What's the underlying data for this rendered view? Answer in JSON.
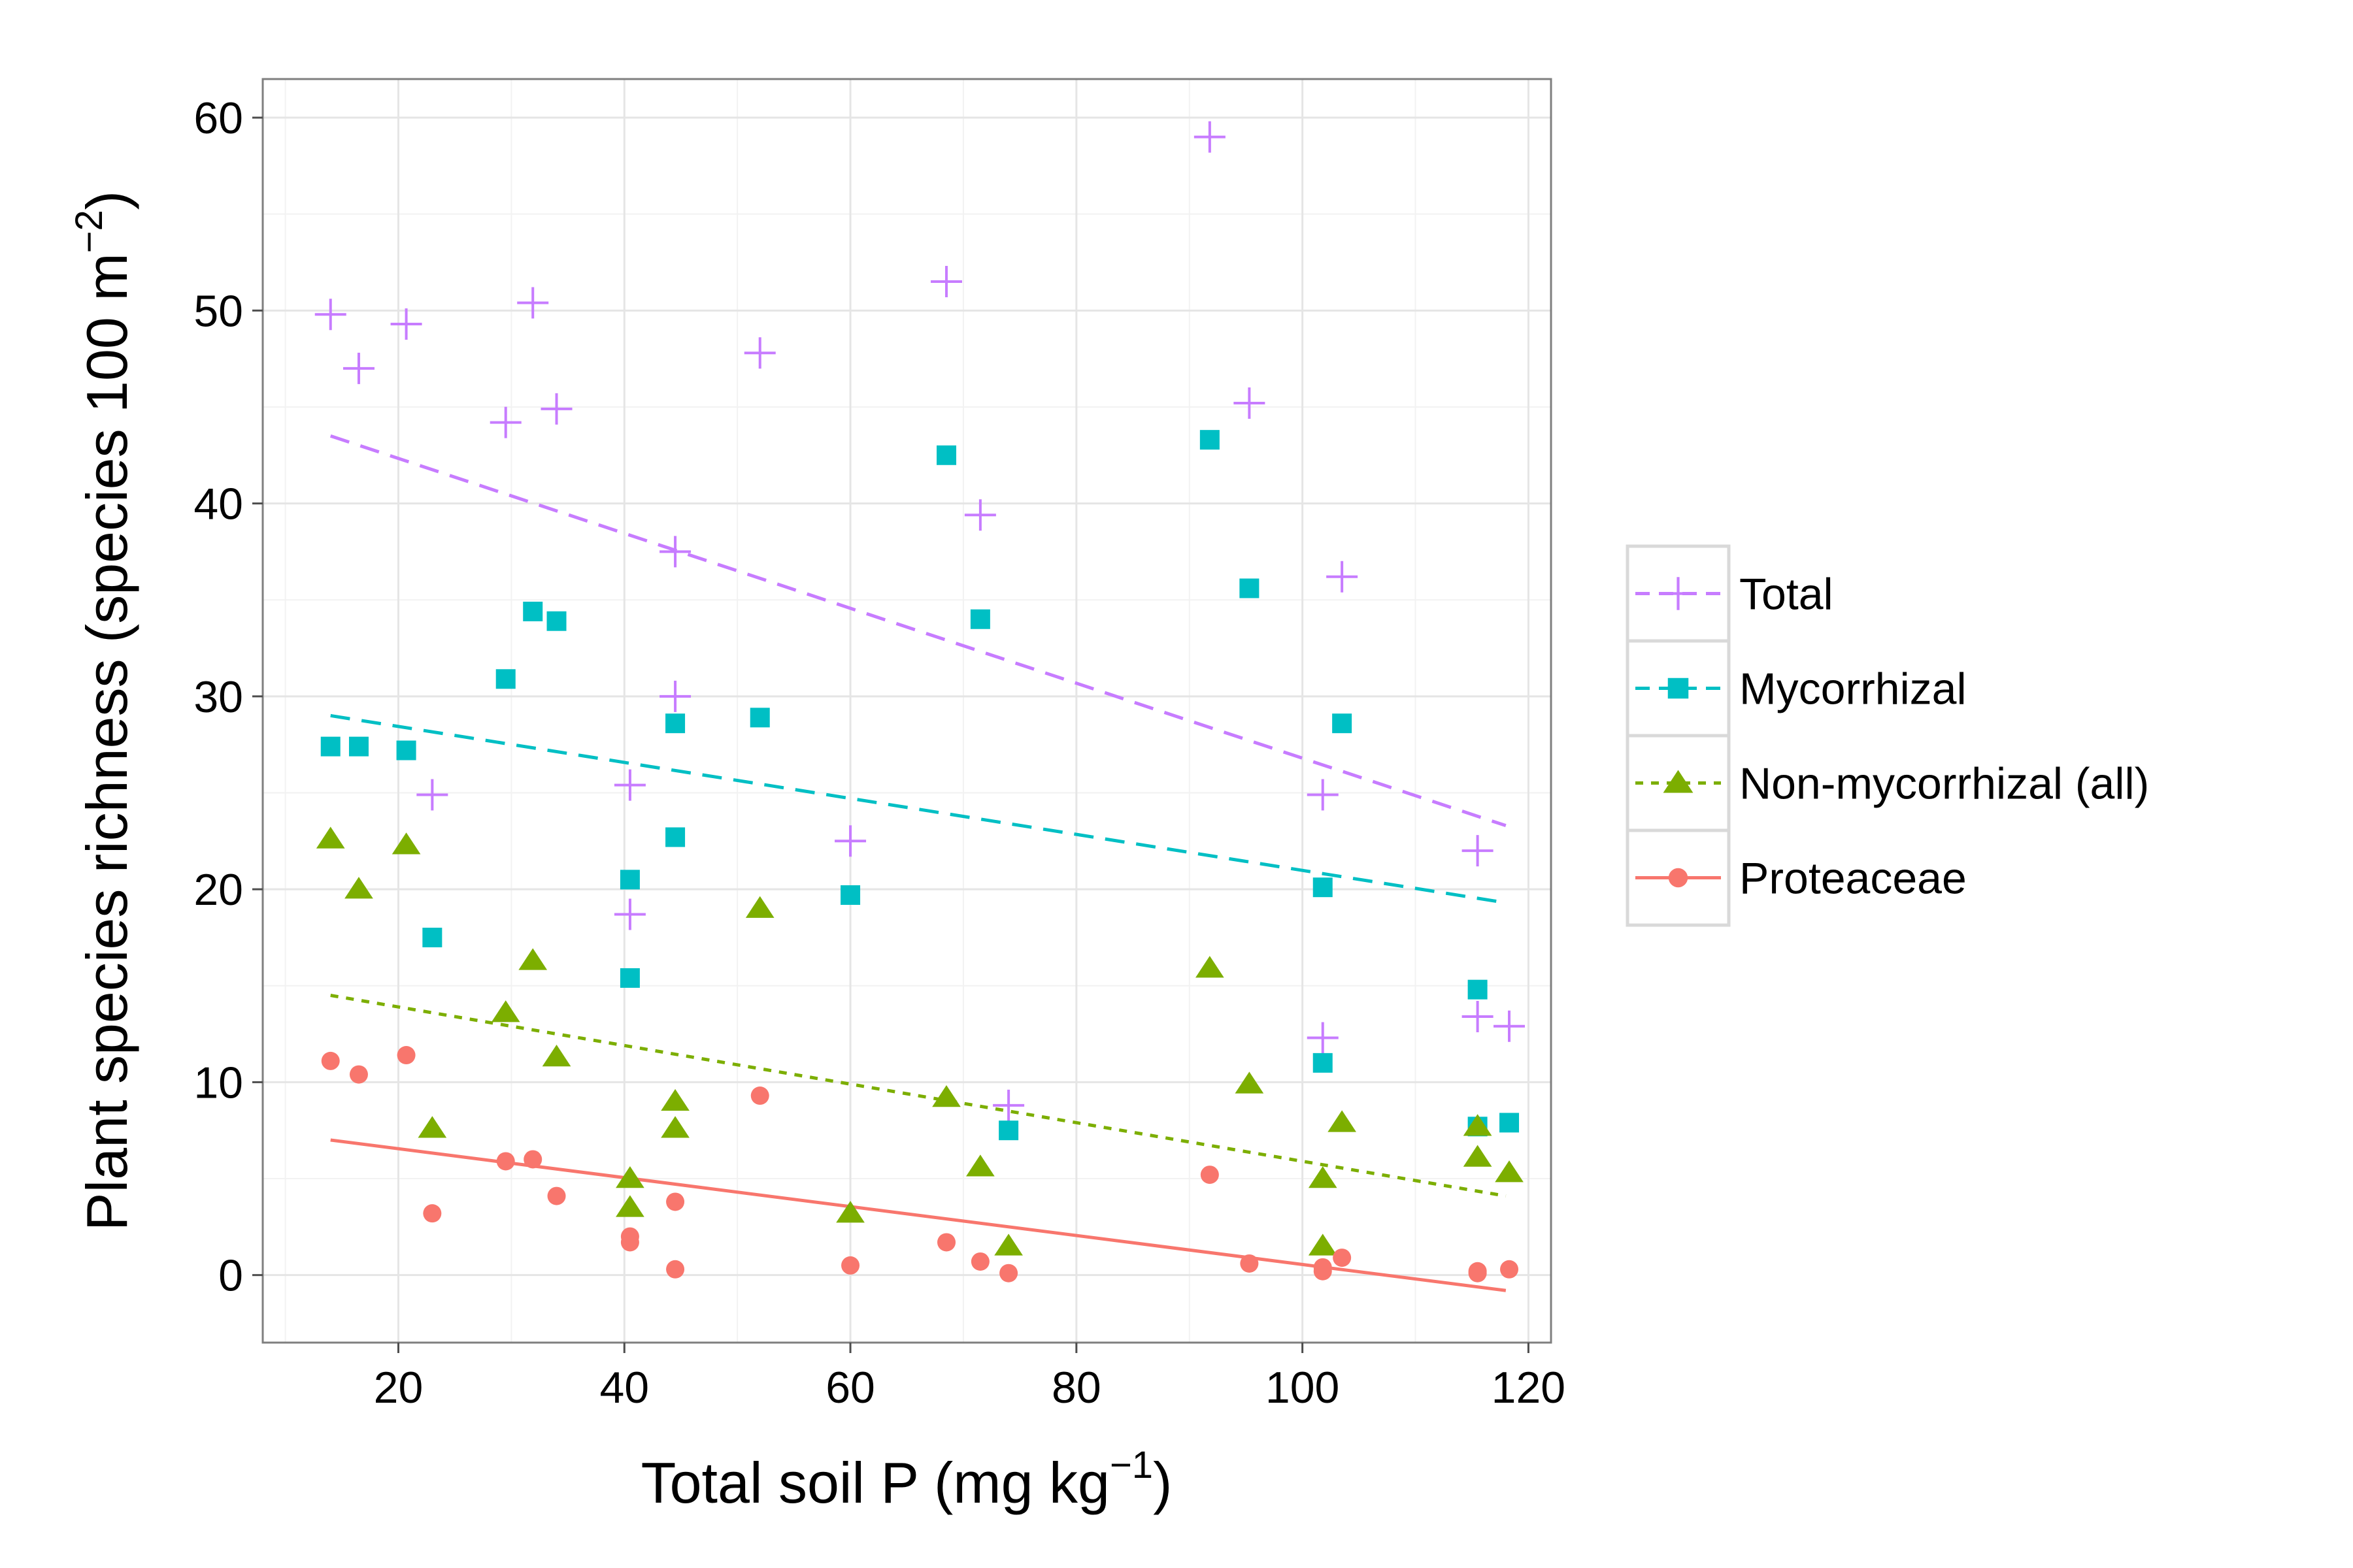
{
  "chart_data": {
    "type": "scatter",
    "title": "",
    "xlabel": "Total soil P (mg kg",
    "xlabel_sup": "−1",
    "xlabel_close": ")",
    "ylabel": "Plant species richness (species 100 m",
    "ylabel_sup": "−2",
    "ylabel_close": ")",
    "xlim": [
      8,
      122
    ],
    "ylim": [
      -3.5,
      62
    ],
    "xticks": [
      20,
      40,
      60,
      80,
      100,
      120
    ],
    "yticks": [
      0,
      10,
      20,
      30,
      40,
      50,
      60
    ],
    "grid": true,
    "legend_position": "right",
    "series": [
      {
        "name": "Total",
        "color": "#C77CFF",
        "marker": "plus",
        "line_style": "dashed",
        "trend": [
          [
            14,
            43.5
          ],
          [
            118,
            23.3
          ]
        ],
        "points": [
          [
            14,
            49.8
          ],
          [
            16.5,
            47
          ],
          [
            20.7,
            49.3
          ],
          [
            23,
            24.9
          ],
          [
            29.5,
            44.2
          ],
          [
            31.9,
            50.4
          ],
          [
            34,
            44.9
          ],
          [
            40.5,
            25.4
          ],
          [
            40.5,
            18.7
          ],
          [
            44.5,
            37.5
          ],
          [
            44.5,
            30
          ],
          [
            52,
            47.8
          ],
          [
            60,
            22.5
          ],
          [
            68.5,
            51.5
          ],
          [
            71.5,
            39.4
          ],
          [
            74,
            8.8
          ],
          [
            91.8,
            59
          ],
          [
            95.3,
            45.2
          ],
          [
            101.8,
            24.9
          ],
          [
            101.8,
            12.3
          ],
          [
            103.5,
            36.2
          ],
          [
            115.5,
            22
          ],
          [
            115.5,
            13.4
          ],
          [
            118.3,
            12.9
          ]
        ]
      },
      {
        "name": "Mycorrhizal",
        "color": "#00BFC4",
        "marker": "square",
        "line_style": "dashed",
        "trend": [
          [
            14,
            29
          ],
          [
            118,
            19.3
          ]
        ],
        "points": [
          [
            14,
            27.4
          ],
          [
            16.5,
            27.4
          ],
          [
            20.7,
            27.2
          ],
          [
            23,
            17.5
          ],
          [
            29.5,
            30.9
          ],
          [
            31.9,
            34.4
          ],
          [
            34,
            33.9
          ],
          [
            40.5,
            20.5
          ],
          [
            40.5,
            15.4
          ],
          [
            44.5,
            28.6
          ],
          [
            44.5,
            22.7
          ],
          [
            52,
            28.9
          ],
          [
            60,
            19.7
          ],
          [
            68.5,
            42.5
          ],
          [
            71.5,
            34
          ],
          [
            74,
            7.5
          ],
          [
            91.8,
            43.3
          ],
          [
            95.3,
            35.6
          ],
          [
            101.8,
            20.1
          ],
          [
            101.8,
            11
          ],
          [
            103.5,
            28.6
          ],
          [
            115.5,
            14.8
          ],
          [
            115.5,
            7.7
          ],
          [
            118.3,
            7.9
          ]
        ]
      },
      {
        "name": "Non-mycorrhizal (all)",
        "color": "#7CAE00",
        "marker": "triangle",
        "line_style": "dotted",
        "trend": [
          [
            14,
            14.5
          ],
          [
            118,
            4.1
          ]
        ],
        "points": [
          [
            14,
            22.6
          ],
          [
            16.5,
            20
          ],
          [
            20.7,
            22.3
          ],
          [
            23,
            7.6
          ],
          [
            29.5,
            13.6
          ],
          [
            31.9,
            16.3
          ],
          [
            34,
            11.3
          ],
          [
            40.5,
            5
          ],
          [
            40.5,
            3.5
          ],
          [
            44.5,
            9
          ],
          [
            44.5,
            7.6
          ],
          [
            52,
            19
          ],
          [
            60,
            3.2
          ],
          [
            68.5,
            9.2
          ],
          [
            71.5,
            5.6
          ],
          [
            74,
            1.5
          ],
          [
            91.8,
            15.9
          ],
          [
            95.3,
            9.9
          ],
          [
            101.8,
            5
          ],
          [
            101.8,
            1.5
          ],
          [
            103.5,
            7.9
          ],
          [
            115.5,
            7.7
          ],
          [
            115.5,
            6.1
          ],
          [
            118.3,
            5.3
          ]
        ]
      },
      {
        "name": "Proteaceae",
        "color": "#F8766D",
        "marker": "circle",
        "line_style": "solid",
        "trend": [
          [
            14,
            7
          ],
          [
            118,
            -0.8
          ]
        ],
        "points": [
          [
            14,
            11.1
          ],
          [
            16.5,
            10.4
          ],
          [
            20.7,
            11.4
          ],
          [
            23,
            3.2
          ],
          [
            29.5,
            5.9
          ],
          [
            31.9,
            6
          ],
          [
            34,
            4.1
          ],
          [
            40.5,
            2
          ],
          [
            40.5,
            1.7
          ],
          [
            44.5,
            3.8
          ],
          [
            44.5,
            0.3
          ],
          [
            52,
            9.3
          ],
          [
            60,
            0.5
          ],
          [
            68.5,
            1.7
          ],
          [
            71.5,
            0.7
          ],
          [
            74,
            0.1
          ],
          [
            91.8,
            5.2
          ],
          [
            95.3,
            0.6
          ],
          [
            101.8,
            0.2
          ],
          [
            101.8,
            0.4
          ],
          [
            103.5,
            0.9
          ],
          [
            115.5,
            0.1
          ],
          [
            115.5,
            0.2
          ],
          [
            118.3,
            0.3
          ]
        ]
      }
    ]
  }
}
